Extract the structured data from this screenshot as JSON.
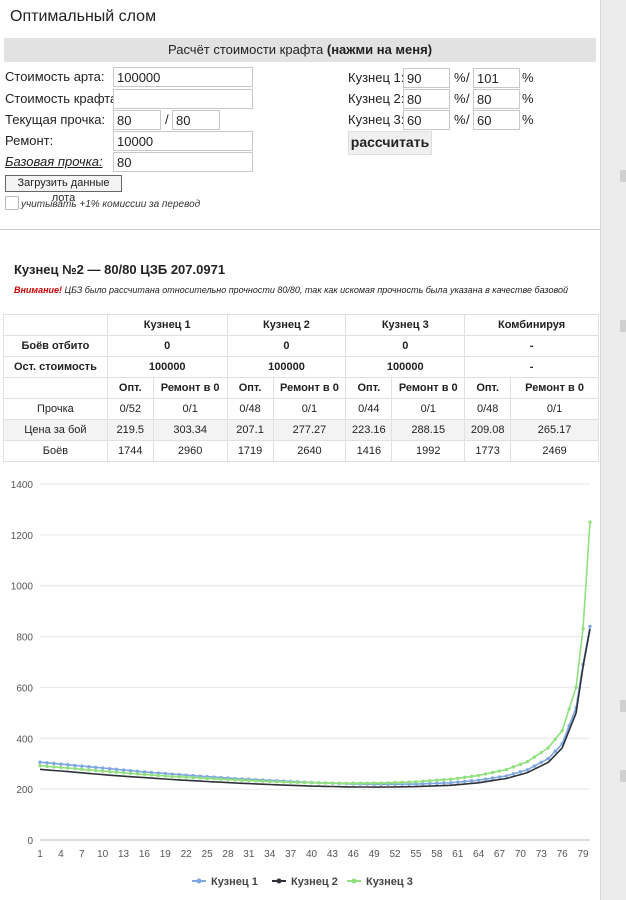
{
  "title": "Оптимальный слом",
  "craft_button": {
    "label": "Расчёт стоимости крафта ",
    "emphasis": "(нажми на меня)"
  },
  "form": {
    "art_cost": {
      "label": "Стоимость арта:",
      "value": "100000"
    },
    "craft_cost": {
      "label": "Стоимость крафта:",
      "value": ""
    },
    "current_durability": {
      "label": "Текущая прочка:",
      "value1": "80",
      "sep": "/",
      "value2": "80"
    },
    "repair": {
      "label": "Ремонт:",
      "value": "10000"
    },
    "base_durability": {
      "label": "Базовая прочка:",
      "value": "80"
    },
    "smiths": [
      {
        "label": "Кузнец 1:",
        "v1": "90",
        "v2": "101"
      },
      {
        "label": "Кузнец 2:",
        "v1": "80",
        "v2": "80"
      },
      {
        "label": "Кузнец 3:",
        "v1": "60",
        "v2": "60"
      }
    ],
    "pct": "%",
    "slash": "/",
    "calc_button": "рассчитать",
    "load_button": "Загрузить данные лота",
    "commission_label": "учитывать +1% комиссии за перевод"
  },
  "result": {
    "title": "Кузнец №2 — 80/80 ЦЗБ 207.0971",
    "warning_strong": "Внимание!",
    "warning_text": " ЦБЗ было рассчитана относительно прочности 80/80, так как искомая прочность была указана в качестве базовой"
  },
  "table": {
    "headers": [
      "Кузнец 1",
      "Кузнец 2",
      "Кузнец 3",
      "Комбинируя"
    ],
    "rows": [
      {
        "label": "Боёв отбито",
        "cells": [
          "0",
          "0",
          "0",
          "-"
        ]
      },
      {
        "label": "Ост. стоимость",
        "cells": [
          "100000",
          "100000",
          "100000",
          "-"
        ]
      }
    ],
    "sub_headers": [
      "Опт.",
      "Ремонт в 0",
      "Опт.",
      "Ремонт в 0",
      "Опт.",
      "Ремонт в 0",
      "Опт.",
      "Ремонт в 0"
    ],
    "detail_rows": [
      {
        "label": "Прочка",
        "cells": [
          "0/52",
          "0/1",
          "0/48",
          "0/1",
          "0/44",
          "0/1",
          "0/48",
          "0/1"
        ]
      },
      {
        "label": "Цена за бой",
        "cells": [
          "219.5",
          "303.34",
          "207.1",
          "277.27",
          "223.16",
          "288.15",
          "209.08",
          "265.17"
        ]
      },
      {
        "label": "Боёв",
        "cells": [
          "1744",
          "2960",
          "1719",
          "2640",
          "1416",
          "1992",
          "1773",
          "2469"
        ]
      }
    ]
  },
  "chart_data": {
    "type": "line",
    "title": "",
    "xlabel": "",
    "ylabel": "",
    "x_ticks": [
      "1",
      "4",
      "7",
      "10",
      "13",
      "16",
      "19",
      "22",
      "25",
      "28",
      "31",
      "34",
      "37",
      "40",
      "43",
      "46",
      "49",
      "52",
      "55",
      "58",
      "61",
      "64",
      "67",
      "70",
      "73",
      "76",
      "79"
    ],
    "y_ticks": [
      "0",
      "200",
      "400",
      "600",
      "800",
      "1000",
      "1200",
      "1400"
    ],
    "xlim": [
      1,
      80
    ],
    "ylim": [
      0,
      1400
    ],
    "grid": "horizontal",
    "legend": "bottom",
    "series": [
      {
        "name": "Кузнец 1",
        "color": "#7ea6e0",
        "points": [
          [
            1,
            306
          ],
          [
            5,
            296
          ],
          [
            10,
            283
          ],
          [
            15,
            270
          ],
          [
            20,
            259
          ],
          [
            25,
            249
          ],
          [
            30,
            240
          ],
          [
            35,
            233
          ],
          [
            40,
            226
          ],
          [
            45,
            221
          ],
          [
            50,
            219
          ],
          [
            55,
            220
          ],
          [
            60,
            225
          ],
          [
            64,
            235
          ],
          [
            68,
            252
          ],
          [
            71,
            276
          ],
          [
            74,
            320
          ],
          [
            76,
            378
          ],
          [
            78,
            520
          ],
          [
            79,
            690
          ],
          [
            80,
            840
          ]
        ]
      },
      {
        "name": "Кузнец 2",
        "color": "#2e3238",
        "points": [
          [
            1,
            278
          ],
          [
            5,
            269
          ],
          [
            10,
            257
          ],
          [
            15,
            247
          ],
          [
            20,
            238
          ],
          [
            25,
            230
          ],
          [
            30,
            223
          ],
          [
            35,
            217
          ],
          [
            40,
            212
          ],
          [
            45,
            209
          ],
          [
            50,
            208
          ],
          [
            55,
            210
          ],
          [
            60,
            215
          ],
          [
            64,
            225
          ],
          [
            68,
            242
          ],
          [
            71,
            265
          ],
          [
            74,
            305
          ],
          [
            76,
            362
          ],
          [
            78,
            500
          ],
          [
            79,
            680
          ],
          [
            80,
            830
          ]
        ]
      },
      {
        "name": "Кузнец 3",
        "color": "#90e07e",
        "points": [
          [
            1,
            292
          ],
          [
            5,
            283
          ],
          [
            10,
            271
          ],
          [
            15,
            260
          ],
          [
            20,
            250
          ],
          [
            25,
            242
          ],
          [
            30,
            235
          ],
          [
            35,
            229
          ],
          [
            40,
            225
          ],
          [
            45,
            223
          ],
          [
            50,
            224
          ],
          [
            55,
            229
          ],
          [
            60,
            239
          ],
          [
            64,
            254
          ],
          [
            68,
            277
          ],
          [
            71,
            308
          ],
          [
            74,
            362
          ],
          [
            76,
            430
          ],
          [
            78,
            600
          ],
          [
            79,
            830
          ],
          [
            80,
            1250
          ]
        ]
      }
    ]
  }
}
